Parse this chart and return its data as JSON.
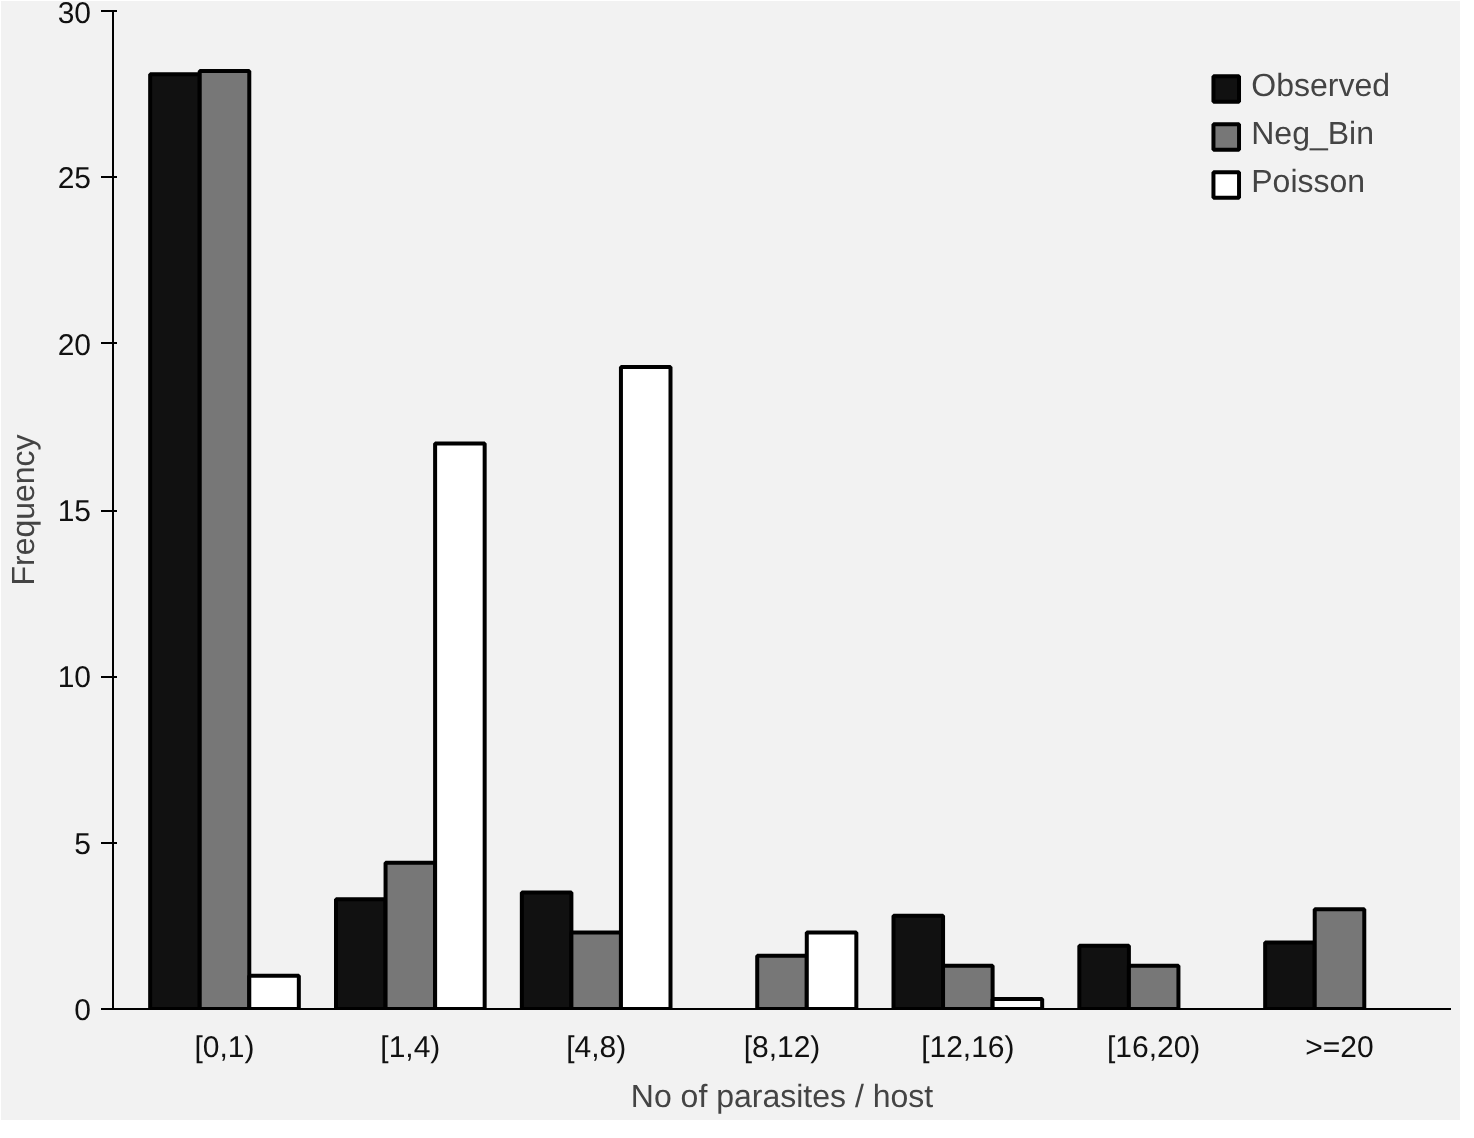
{
  "chart_data": {
    "type": "bar",
    "xlabel": "No of parasites / host",
    "ylabel": "Frequency",
    "categories": [
      "[0,1)",
      "[1,4)",
      "[4,8)",
      "[8,12)",
      "[12,16)",
      "[16,20)",
      ">=20"
    ],
    "series": [
      {
        "name": "Observed",
        "color": "#111111",
        "values": [
          28.1,
          3.3,
          3.5,
          null,
          2.8,
          1.9,
          2.0
        ]
      },
      {
        "name": "Neg_Bin",
        "color": "#777777",
        "values": [
          28.2,
          4.4,
          2.3,
          1.6,
          1.3,
          1.3,
          3.0
        ]
      },
      {
        "name": "Poisson",
        "color": "#ffffff",
        "values": [
          1.0,
          17.0,
          19.3,
          2.3,
          0.3,
          null,
          null
        ]
      }
    ],
    "ylim": [
      0,
      30
    ],
    "yticks": [
      0,
      5,
      10,
      15,
      20,
      25,
      30
    ],
    "grid": false,
    "legend": "top right"
  }
}
